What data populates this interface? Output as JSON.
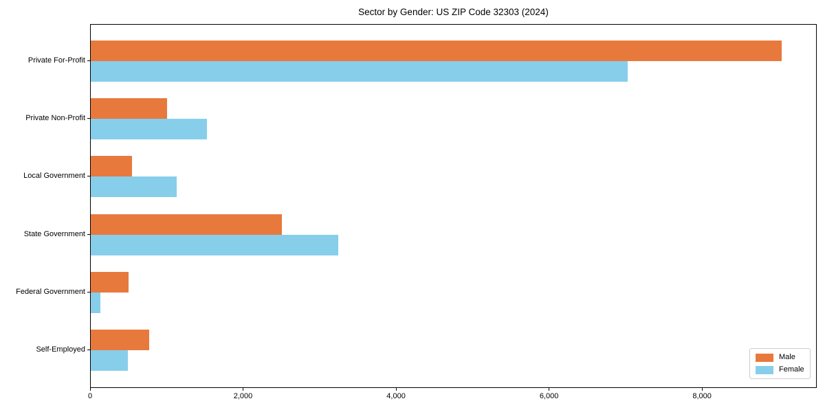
{
  "chart_data": {
    "type": "bar",
    "orientation": "horizontal",
    "title": "Sector by Gender: US ZIP Code 32303 (2024)",
    "categories": [
      "Private For-Profit",
      "Private Non-Profit",
      "Local Government",
      "State Government",
      "Federal Government",
      "Self-Employed"
    ],
    "series": [
      {
        "name": "Male",
        "color": "#e8793d",
        "values": [
          9030,
          1000,
          540,
          2500,
          495,
          765
        ]
      },
      {
        "name": "Female",
        "color": "#87ceeb",
        "values": [
          7020,
          1520,
          1120,
          3240,
          125,
          485
        ]
      }
    ],
    "xlabel": "",
    "ylabel": "",
    "xlim": [
      0,
      9500
    ],
    "xticks": [
      0,
      2000,
      4000,
      6000,
      8000
    ],
    "xtick_labels": [
      "0",
      "2,000",
      "4,000",
      "6,000",
      "8,000"
    ],
    "grid": false,
    "legend": {
      "position": "lower right",
      "items": [
        "Male",
        "Female"
      ]
    }
  }
}
